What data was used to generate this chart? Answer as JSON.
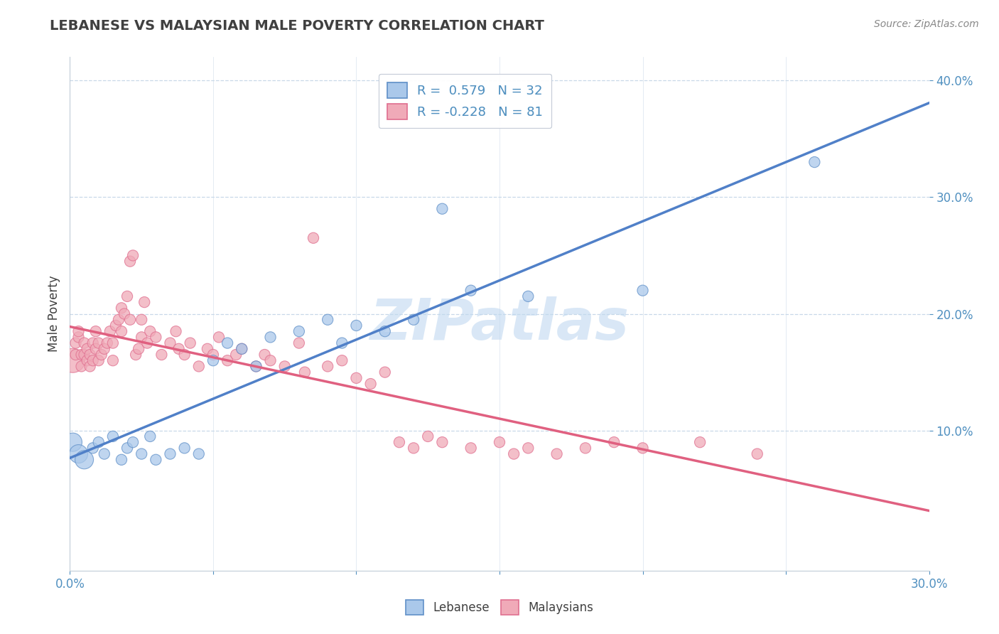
{
  "title": "LEBANESE VS MALAYSIAN MALE POVERTY CORRELATION CHART",
  "source": "Source: ZipAtlas.com",
  "ylabel": "Male Poverty",
  "xlim": [
    0.0,
    0.3
  ],
  "ylim": [
    -0.02,
    0.42
  ],
  "yticks": [
    0.1,
    0.2,
    0.3,
    0.4
  ],
  "ytick_labels": [
    "10.0%",
    "20.0%",
    "30.0%",
    "40.0%"
  ],
  "xticks": [
    0.0,
    0.05,
    0.1,
    0.15,
    0.2,
    0.25,
    0.3
  ],
  "background_color": "#ffffff",
  "grid_color": "#c8d8e8",
  "title_color": "#404040",
  "axis_color": "#5090c0",
  "watermark_text": "ZIPatlas",
  "watermark_color": "#c0d8f0",
  "lebanese_color": "#aac8ea",
  "malaysian_color": "#f0aab8",
  "lebanese_edge_color": "#6090c8",
  "malaysian_edge_color": "#e07090",
  "lebanese_line_color": "#5080c8",
  "malaysian_line_color": "#e06080",
  "lebanese_R": 0.579,
  "lebanese_N": 32,
  "malaysian_R": -0.228,
  "malaysian_N": 81,
  "lebanese_points": [
    [
      0.001,
      0.09
    ],
    [
      0.003,
      0.08
    ],
    [
      0.005,
      0.075
    ],
    [
      0.008,
      0.085
    ],
    [
      0.01,
      0.09
    ],
    [
      0.012,
      0.08
    ],
    [
      0.015,
      0.095
    ],
    [
      0.018,
      0.075
    ],
    [
      0.02,
      0.085
    ],
    [
      0.022,
      0.09
    ],
    [
      0.025,
      0.08
    ],
    [
      0.028,
      0.095
    ],
    [
      0.03,
      0.075
    ],
    [
      0.035,
      0.08
    ],
    [
      0.04,
      0.085
    ],
    [
      0.045,
      0.08
    ],
    [
      0.05,
      0.16
    ],
    [
      0.055,
      0.175
    ],
    [
      0.06,
      0.17
    ],
    [
      0.065,
      0.155
    ],
    [
      0.07,
      0.18
    ],
    [
      0.08,
      0.185
    ],
    [
      0.09,
      0.195
    ],
    [
      0.095,
      0.175
    ],
    [
      0.1,
      0.19
    ],
    [
      0.11,
      0.185
    ],
    [
      0.12,
      0.195
    ],
    [
      0.13,
      0.29
    ],
    [
      0.14,
      0.22
    ],
    [
      0.16,
      0.215
    ],
    [
      0.2,
      0.22
    ],
    [
      0.26,
      0.33
    ]
  ],
  "malaysian_points": [
    [
      0.001,
      0.16
    ],
    [
      0.002,
      0.175
    ],
    [
      0.002,
      0.165
    ],
    [
      0.003,
      0.18
    ],
    [
      0.003,
      0.185
    ],
    [
      0.004,
      0.155
    ],
    [
      0.004,
      0.165
    ],
    [
      0.005,
      0.175
    ],
    [
      0.005,
      0.165
    ],
    [
      0.006,
      0.16
    ],
    [
      0.006,
      0.17
    ],
    [
      0.007,
      0.155
    ],
    [
      0.007,
      0.165
    ],
    [
      0.008,
      0.175
    ],
    [
      0.008,
      0.16
    ],
    [
      0.009,
      0.17
    ],
    [
      0.009,
      0.185
    ],
    [
      0.01,
      0.16
    ],
    [
      0.01,
      0.175
    ],
    [
      0.011,
      0.165
    ],
    [
      0.012,
      0.17
    ],
    [
      0.013,
      0.175
    ],
    [
      0.014,
      0.185
    ],
    [
      0.015,
      0.16
    ],
    [
      0.015,
      0.175
    ],
    [
      0.016,
      0.19
    ],
    [
      0.017,
      0.195
    ],
    [
      0.018,
      0.185
    ],
    [
      0.018,
      0.205
    ],
    [
      0.019,
      0.2
    ],
    [
      0.02,
      0.215
    ],
    [
      0.021,
      0.195
    ],
    [
      0.021,
      0.245
    ],
    [
      0.022,
      0.25
    ],
    [
      0.023,
      0.165
    ],
    [
      0.024,
      0.17
    ],
    [
      0.025,
      0.18
    ],
    [
      0.025,
      0.195
    ],
    [
      0.026,
      0.21
    ],
    [
      0.027,
      0.175
    ],
    [
      0.028,
      0.185
    ],
    [
      0.03,
      0.18
    ],
    [
      0.032,
      0.165
    ],
    [
      0.035,
      0.175
    ],
    [
      0.037,
      0.185
    ],
    [
      0.038,
      0.17
    ],
    [
      0.04,
      0.165
    ],
    [
      0.042,
      0.175
    ],
    [
      0.045,
      0.155
    ],
    [
      0.048,
      0.17
    ],
    [
      0.05,
      0.165
    ],
    [
      0.052,
      0.18
    ],
    [
      0.055,
      0.16
    ],
    [
      0.058,
      0.165
    ],
    [
      0.06,
      0.17
    ],
    [
      0.065,
      0.155
    ],
    [
      0.068,
      0.165
    ],
    [
      0.07,
      0.16
    ],
    [
      0.075,
      0.155
    ],
    [
      0.08,
      0.175
    ],
    [
      0.082,
      0.15
    ],
    [
      0.085,
      0.265
    ],
    [
      0.09,
      0.155
    ],
    [
      0.095,
      0.16
    ],
    [
      0.1,
      0.145
    ],
    [
      0.105,
      0.14
    ],
    [
      0.11,
      0.15
    ],
    [
      0.115,
      0.09
    ],
    [
      0.12,
      0.085
    ],
    [
      0.125,
      0.095
    ],
    [
      0.13,
      0.09
    ],
    [
      0.14,
      0.085
    ],
    [
      0.15,
      0.09
    ],
    [
      0.155,
      0.08
    ],
    [
      0.16,
      0.085
    ],
    [
      0.17,
      0.08
    ],
    [
      0.18,
      0.085
    ],
    [
      0.19,
      0.09
    ],
    [
      0.2,
      0.085
    ],
    [
      0.22,
      0.09
    ],
    [
      0.24,
      0.08
    ]
  ],
  "lebanese_size": 120,
  "lebanese_size_large": 350,
  "malaysian_size": 120,
  "malaysian_size_large": 600
}
